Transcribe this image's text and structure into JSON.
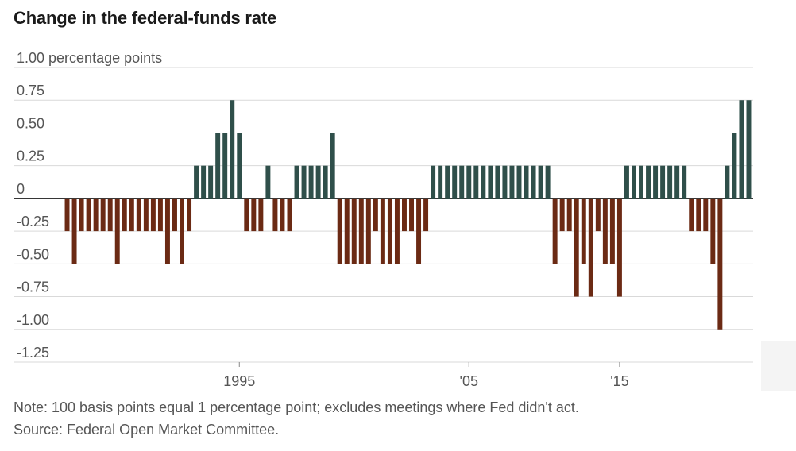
{
  "title": "Change in the federal-funds rate",
  "note": "Note: 100 basis points equal 1 percentage point; excludes meetings where Fed didn't act.",
  "source": "Source: Federal Open Market Committee.",
  "colors": {
    "positive": "#2f4f4a",
    "negative": "#6b2a14",
    "grid": "#d9d9d9",
    "baseline": "#1a1a1a",
    "text": "#555555"
  },
  "chart_data": {
    "type": "bar",
    "title": "Change in the federal-funds rate",
    "ylabel": "percentage points",
    "ylim": [
      -1.25,
      1.0
    ],
    "yticks": [
      {
        "value": 1.0,
        "label": "1.00 percentage points"
      },
      {
        "value": 0.75,
        "label": "0.75"
      },
      {
        "value": 0.5,
        "label": "0.50"
      },
      {
        "value": 0.25,
        "label": "0.25"
      },
      {
        "value": 0,
        "label": "0"
      },
      {
        "value": -0.25,
        "label": "-0.25"
      },
      {
        "value": -0.5,
        "label": "-0.50"
      },
      {
        "value": -0.75,
        "label": "-0.75"
      },
      {
        "value": -1.0,
        "label": "-1.00"
      },
      {
        "value": -1.25,
        "label": "-1.25"
      }
    ],
    "xticks": [
      {
        "label": "1995",
        "index": 24
      },
      {
        "label": "'05",
        "index": 56
      },
      {
        "label": "'15",
        "index": 77
      }
    ],
    "grid": true,
    "values": [
      -0.25,
      -0.5,
      -0.25,
      -0.25,
      -0.25,
      -0.25,
      -0.25,
      -0.5,
      -0.25,
      -0.25,
      -0.25,
      -0.25,
      -0.25,
      -0.25,
      -0.5,
      -0.25,
      -0.5,
      -0.25,
      0.25,
      0.25,
      0.25,
      0.5,
      0.5,
      0.75,
      0.5,
      -0.25,
      -0.25,
      -0.25,
      0.25,
      -0.25,
      -0.25,
      -0.25,
      0.25,
      0.25,
      0.25,
      0.25,
      0.25,
      0.5,
      -0.5,
      -0.5,
      -0.5,
      -0.5,
      -0.5,
      -0.25,
      -0.5,
      -0.5,
      -0.5,
      -0.25,
      -0.25,
      -0.5,
      -0.25,
      0.25,
      0.25,
      0.25,
      0.25,
      0.25,
      0.25,
      0.25,
      0.25,
      0.25,
      0.25,
      0.25,
      0.25,
      0.25,
      0.25,
      0.25,
      0.25,
      0.25,
      -0.5,
      -0.25,
      -0.25,
      -0.75,
      -0.5,
      -0.75,
      -0.25,
      -0.5,
      -0.5,
      -0.75,
      0.25,
      0.25,
      0.25,
      0.25,
      0.25,
      0.25,
      0.25,
      0.25,
      0.25,
      -0.25,
      -0.25,
      -0.25,
      -0.5,
      -1.0,
      0.25,
      0.5,
      0.75,
      0.75
    ]
  }
}
